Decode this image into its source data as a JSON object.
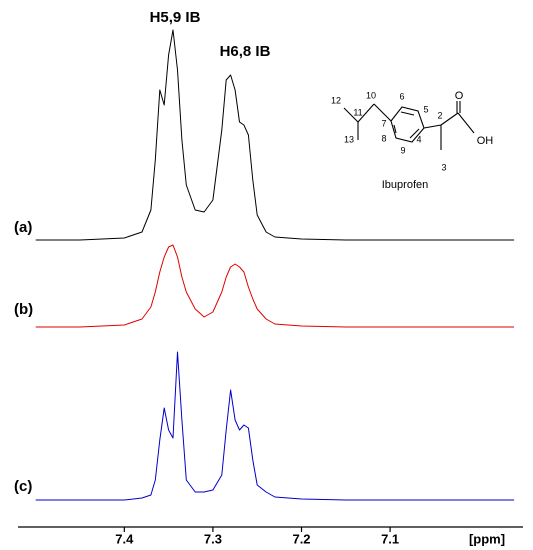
{
  "chart_data": {
    "type": "line",
    "annotations": [
      "H5,9 IB",
      "H6,8 IB"
    ],
    "xlabel": "[ppm]",
    "xlim": [
      7.52,
      6.95
    ],
    "xticks": [
      7.4,
      7.3,
      7.2,
      7.1
    ],
    "x": [
      7.5,
      7.45,
      7.4,
      7.38,
      7.37,
      7.365,
      7.36,
      7.355,
      7.35,
      7.345,
      7.34,
      7.335,
      7.33,
      7.32,
      7.31,
      7.3,
      7.29,
      7.285,
      7.28,
      7.275,
      7.27,
      7.265,
      7.26,
      7.255,
      7.25,
      7.24,
      7.23,
      7.2,
      7.15,
      7.1,
      7.05,
      7.0,
      6.96
    ],
    "series": [
      {
        "name": "(a)",
        "color": "#000000",
        "values": [
          0,
          0,
          2,
          8,
          30,
          80,
          150,
          135,
          185,
          210,
          170,
          100,
          55,
          30,
          28,
          40,
          110,
          160,
          165,
          150,
          118,
          115,
          105,
          60,
          25,
          8,
          3,
          1,
          0,
          0,
          0,
          0,
          0
        ]
      },
      {
        "name": "(b)",
        "color": "#e00000",
        "values": [
          0,
          0,
          2,
          8,
          20,
          35,
          55,
          70,
          80,
          82,
          70,
          50,
          35,
          18,
          10,
          15,
          35,
          50,
          60,
          63,
          60,
          55,
          40,
          28,
          18,
          8,
          3,
          1,
          0,
          0,
          0,
          0,
          0
        ]
      },
      {
        "name": "(c)",
        "color": "#0000cc",
        "values": [
          0,
          0,
          0,
          2,
          5,
          20,
          60,
          92,
          70,
          62,
          148,
          80,
          20,
          8,
          8,
          10,
          25,
          70,
          110,
          80,
          70,
          75,
          72,
          40,
          15,
          8,
          3,
          1,
          0,
          0,
          0,
          0,
          0
        ]
      }
    ]
  },
  "structure": {
    "name": "Ibuprofen",
    "atom_labels": [
      "12",
      "11",
      "10",
      "13",
      "7",
      "6",
      "5",
      "8",
      "9",
      "4",
      "2",
      "3",
      "O",
      "OH"
    ]
  }
}
